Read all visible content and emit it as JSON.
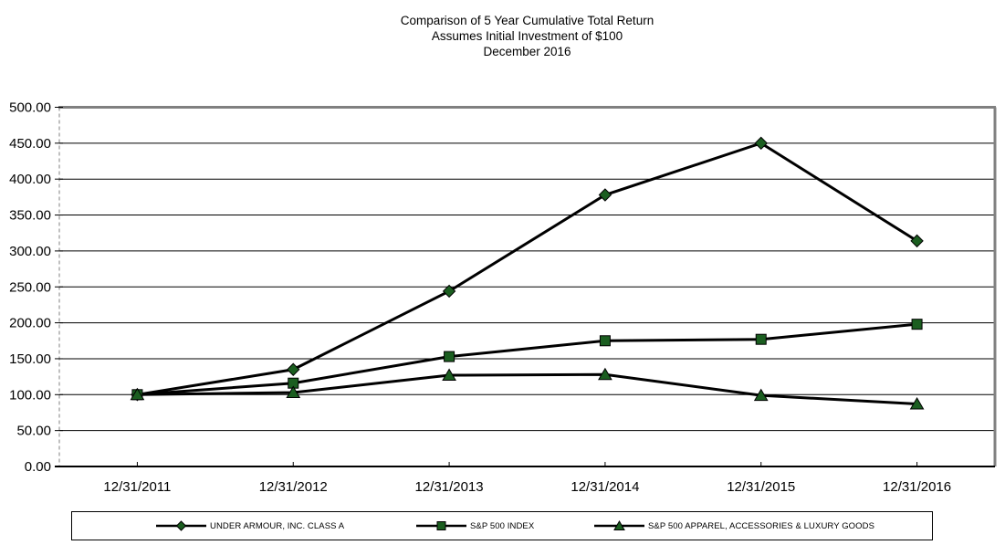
{
  "title": {
    "line1": "Comparison of 5 Year Cumulative Total Return",
    "line2": "Assumes Initial Investment of $100",
    "line3": "December 2016"
  },
  "chart_data": {
    "type": "line",
    "title": "Comparison of 5 Year Cumulative Total Return",
    "subtitle": "Assumes Initial Investment of $100",
    "date_label": "December 2016",
    "categories": [
      "12/31/2011",
      "12/31/2012",
      "12/31/2013",
      "12/31/2014",
      "12/31/2015",
      "12/31/2016"
    ],
    "series": [
      {
        "name": "UNDER ARMOUR, INC. CLASS A",
        "marker": "diamond",
        "values": [
          100.0,
          135,
          244,
          378,
          450,
          314
        ]
      },
      {
        "name": "S&P 500 INDEX",
        "marker": "square",
        "values": [
          100.0,
          116,
          153,
          175,
          177,
          198
        ]
      },
      {
        "name": "S&P 500 APPAREL, ACCESSORIES & LUXURY GOODS",
        "marker": "triangle",
        "values": [
          100.0,
          103,
          127,
          128,
          99,
          87
        ]
      }
    ],
    "ylim": [
      0,
      500
    ],
    "ytick_step": 50,
    "ytick_decimals": 2,
    "xlabel": "",
    "ylabel": "",
    "grid": "horizontal",
    "legend_position": "bottom",
    "colors": {
      "line": "#000000",
      "marker_fill": "#1b5e20",
      "marker_edge": "#000000",
      "gridline": "#000000",
      "plot_border": "#808080",
      "axis": "#000000"
    }
  }
}
